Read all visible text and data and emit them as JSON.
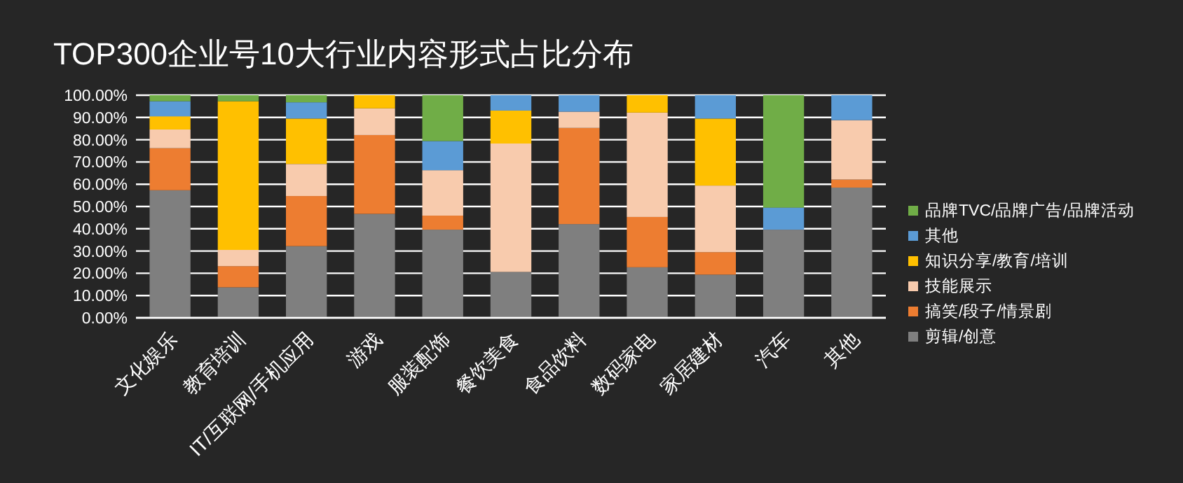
{
  "chart_data": {
    "type": "bar",
    "stacked": true,
    "title": "TOP300企业号10大行业内容形式占比分布",
    "categories": [
      "文化娱乐",
      "教育培训",
      "IT/互联网/手机应用",
      "游戏",
      "服装配饰",
      "餐饮美食",
      "食品饮料",
      "数码家电",
      "家居建材",
      "汽车",
      "其他"
    ],
    "series": [
      {
        "name": "剪辑/创意",
        "color": "#7f7f7f",
        "values": [
          57.3,
          13.7,
          32.2,
          46.7,
          39.6,
          20.6,
          42.1,
          22.7,
          19.4,
          39.6,
          58.5
        ]
      },
      {
        "name": "搞笑/段子/情景剧",
        "color": "#ed7d31",
        "values": [
          18.9,
          9.5,
          22.5,
          35.4,
          6.3,
          null,
          43.2,
          22.6,
          10.1,
          null,
          3.6
        ]
      },
      {
        "name": "技能展示",
        "color": "#f8cbad",
        "values": [
          8.4,
          7.3,
          14.4,
          12.0,
          20.4,
          57.7,
          7.3,
          46.9,
          29.9,
          null,
          26.7
        ]
      },
      {
        "name": "知识分享/教育/培训",
        "color": "#ffc000",
        "values": [
          5.9,
          66.8,
          20.4,
          5.9,
          null,
          14.8,
          null,
          7.8,
          30.1,
          null,
          null
        ]
      },
      {
        "name": "其他",
        "color": "#5b9bd5",
        "values": [
          6.8,
          null,
          7.3,
          null,
          13.1,
          6.9,
          7.4,
          null,
          10.5,
          9.9,
          11.2
        ]
      },
      {
        "name": "品牌TVC/品牌广告/品牌活动",
        "color": "#70ad47",
        "values": [
          2.7,
          2.7,
          3.2,
          null,
          20.6,
          null,
          null,
          null,
          null,
          50.5,
          null
        ]
      }
    ],
    "ylim": [
      0,
      100
    ],
    "yticks": [
      {
        "value": 0,
        "label": "0.00%"
      },
      {
        "value": 10,
        "label": "10.00%"
      },
      {
        "value": 20,
        "label": "20.00%"
      },
      {
        "value": 30,
        "label": "30.00%"
      },
      {
        "value": 40,
        "label": "40.00%"
      },
      {
        "value": 50,
        "label": "50.00%"
      },
      {
        "value": 60,
        "label": "60.00%"
      },
      {
        "value": 70,
        "label": "70.00%"
      },
      {
        "value": 80,
        "label": "80.00%"
      },
      {
        "value": 90,
        "label": "90.00%"
      },
      {
        "value": 100,
        "label": "100.00%"
      }
    ],
    "grid": "y",
    "legend": "right"
  }
}
